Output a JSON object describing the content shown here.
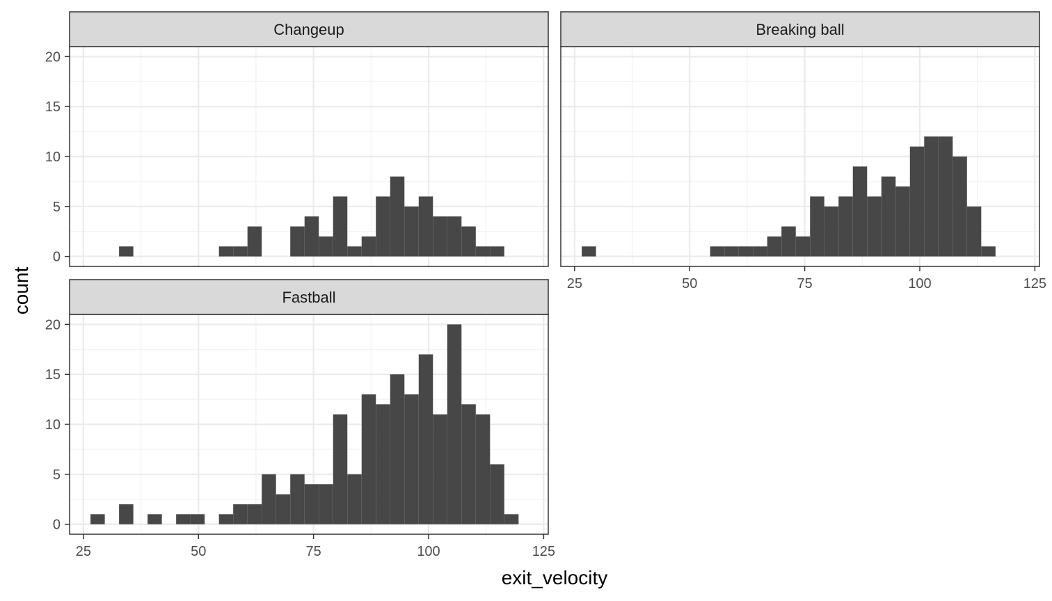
{
  "chart_data": {
    "type": "bar",
    "subtype": "faceted-histogram",
    "xlabel": "exit_velocity",
    "ylabel": "count",
    "xlim": [
      22,
      126
    ],
    "ylim": [
      -1,
      21
    ],
    "x_ticks": [
      25,
      50,
      75,
      100,
      125
    ],
    "y_ticks": [
      0,
      5,
      10,
      15,
      20
    ],
    "bin_width": 3.1,
    "grid": true,
    "colors": {
      "bar": "#474747",
      "strip_fill": "#d9d9d9",
      "grid_major": "#ebebeb",
      "grid_minor": "#f2f2f2",
      "panel_border": "#333333"
    },
    "facets": [
      {
        "name": "Changeup",
        "bins": [
          {
            "x": 34.3,
            "count": 1
          },
          {
            "x": 56.0,
            "count": 1
          },
          {
            "x": 59.1,
            "count": 1
          },
          {
            "x": 62.2,
            "count": 3
          },
          {
            "x": 71.5,
            "count": 3
          },
          {
            "x": 74.6,
            "count": 4
          },
          {
            "x": 77.7,
            "count": 2
          },
          {
            "x": 80.8,
            "count": 6
          },
          {
            "x": 83.9,
            "count": 1
          },
          {
            "x": 87.0,
            "count": 2
          },
          {
            "x": 90.1,
            "count": 6
          },
          {
            "x": 93.2,
            "count": 8
          },
          {
            "x": 96.3,
            "count": 5
          },
          {
            "x": 99.4,
            "count": 6
          },
          {
            "x": 102.5,
            "count": 4
          },
          {
            "x": 105.6,
            "count": 4
          },
          {
            "x": 108.7,
            "count": 3
          },
          {
            "x": 111.8,
            "count": 1
          },
          {
            "x": 114.9,
            "count": 1
          }
        ]
      },
      {
        "name": "Breaking ball",
        "bins": [
          {
            "x": 28.1,
            "count": 1
          },
          {
            "x": 56.0,
            "count": 1
          },
          {
            "x": 59.1,
            "count": 1
          },
          {
            "x": 62.2,
            "count": 1
          },
          {
            "x": 65.3,
            "count": 1
          },
          {
            "x": 68.4,
            "count": 2
          },
          {
            "x": 71.5,
            "count": 3
          },
          {
            "x": 74.6,
            "count": 2
          },
          {
            "x": 77.7,
            "count": 6
          },
          {
            "x": 80.8,
            "count": 5
          },
          {
            "x": 83.9,
            "count": 6
          },
          {
            "x": 87.0,
            "count": 9
          },
          {
            "x": 90.1,
            "count": 6
          },
          {
            "x": 93.2,
            "count": 8
          },
          {
            "x": 96.3,
            "count": 7
          },
          {
            "x": 99.4,
            "count": 11
          },
          {
            "x": 102.5,
            "count": 12
          },
          {
            "x": 105.6,
            "count": 12
          },
          {
            "x": 108.7,
            "count": 10
          },
          {
            "x": 111.8,
            "count": 5
          },
          {
            "x": 114.9,
            "count": 1
          }
        ]
      },
      {
        "name": "Fastball",
        "bins": [
          {
            "x": 28.1,
            "count": 1
          },
          {
            "x": 34.3,
            "count": 2
          },
          {
            "x": 40.5,
            "count": 1
          },
          {
            "x": 46.7,
            "count": 1
          },
          {
            "x": 49.8,
            "count": 1
          },
          {
            "x": 56.0,
            "count": 1
          },
          {
            "x": 59.1,
            "count": 2
          },
          {
            "x": 62.2,
            "count": 2
          },
          {
            "x": 65.3,
            "count": 5
          },
          {
            "x": 68.4,
            "count": 3
          },
          {
            "x": 71.5,
            "count": 5
          },
          {
            "x": 74.6,
            "count": 4
          },
          {
            "x": 77.7,
            "count": 4
          },
          {
            "x": 80.8,
            "count": 11
          },
          {
            "x": 83.9,
            "count": 5
          },
          {
            "x": 87.0,
            "count": 13
          },
          {
            "x": 90.1,
            "count": 12
          },
          {
            "x": 93.2,
            "count": 15
          },
          {
            "x": 96.3,
            "count": 13
          },
          {
            "x": 99.4,
            "count": 17
          },
          {
            "x": 102.5,
            "count": 11
          },
          {
            "x": 105.6,
            "count": 20
          },
          {
            "x": 108.7,
            "count": 12
          },
          {
            "x": 111.8,
            "count": 11
          },
          {
            "x": 114.9,
            "count": 6
          },
          {
            "x": 118.0,
            "count": 1
          }
        ]
      }
    ]
  }
}
